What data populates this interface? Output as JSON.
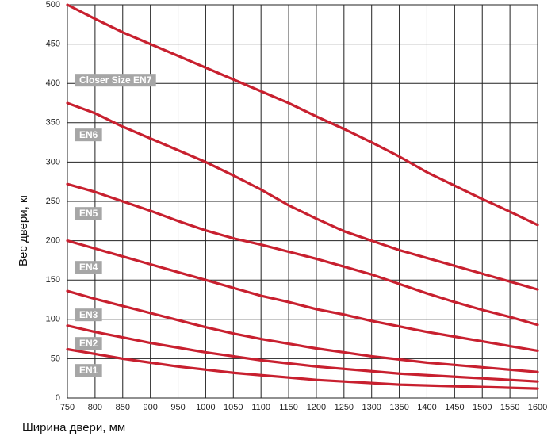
{
  "chart_data": {
    "type": "line",
    "x_label": "Ширина двери, мм",
    "y_label": "Вес двери, кг",
    "x": [
      750,
      800,
      850,
      900,
      950,
      1000,
      1050,
      1100,
      1150,
      1200,
      1250,
      1300,
      1350,
      1400,
      1450,
      1500,
      1550,
      1600
    ],
    "xlim": [
      750,
      1600
    ],
    "xticks": [
      750,
      800,
      850,
      900,
      950,
      1000,
      1050,
      1100,
      1150,
      1200,
      1250,
      1300,
      1350,
      1400,
      1450,
      1500,
      1550,
      1600
    ],
    "ylim": [
      0,
      500
    ],
    "yticks": [
      0,
      50,
      100,
      150,
      200,
      250,
      300,
      350,
      400,
      450,
      500
    ],
    "grid": true,
    "series": [
      {
        "name": "Closer Size EN7",
        "color": "#c8202f",
        "values": [
          500,
          482,
          465,
          450,
          435,
          420,
          405,
          390,
          375,
          358,
          342,
          325,
          307,
          287,
          270,
          253,
          237,
          220
        ]
      },
      {
        "name": "EN6",
        "color": "#c8202f",
        "values": [
          375,
          362,
          345,
          330,
          315,
          300,
          283,
          265,
          245,
          228,
          212,
          200,
          188,
          178,
          168,
          158,
          148,
          138
        ]
      },
      {
        "name": "EN5",
        "color": "#c8202f",
        "values": [
          272,
          262,
          250,
          238,
          225,
          213,
          203,
          195,
          186,
          177,
          167,
          157,
          145,
          133,
          122,
          112,
          103,
          93
        ]
      },
      {
        "name": "EN4",
        "color": "#c8202f",
        "values": [
          200,
          190,
          180,
          170,
          160,
          150,
          140,
          130,
          122,
          113,
          106,
          98,
          91,
          84,
          78,
          72,
          66,
          60
        ]
      },
      {
        "name": "EN3",
        "color": "#c8202f",
        "values": [
          136,
          126,
          117,
          108,
          99,
          90,
          82,
          75,
          69,
          63,
          58,
          53,
          49,
          45,
          42,
          39,
          36,
          33
        ]
      },
      {
        "name": "EN2",
        "color": "#c8202f",
        "values": [
          92,
          84,
          77,
          70,
          64,
          58,
          53,
          48,
          44,
          40,
          37,
          34,
          31,
          29,
          27,
          25,
          23,
          21
        ]
      },
      {
        "name": "EN1",
        "color": "#c8202f",
        "values": [
          62,
          56,
          50,
          45,
          40,
          36,
          32,
          29,
          26,
          23,
          21,
          19,
          17,
          16,
          15,
          14,
          13,
          12
        ]
      }
    ]
  }
}
